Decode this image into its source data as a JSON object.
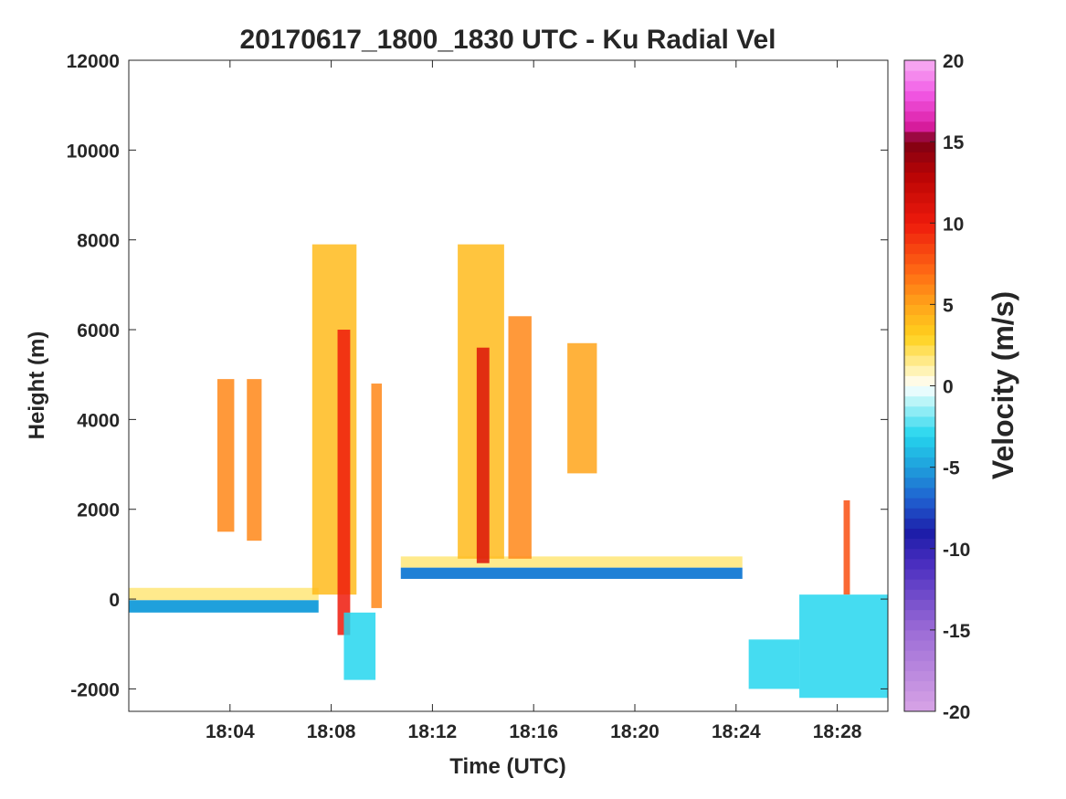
{
  "chart_data": {
    "type": "heatmap",
    "title": "20170617_1800_1830 UTC - Ku Radial Vel",
    "xlabel": "Time (UTC)",
    "ylabel": "Height (m)",
    "xlim": [
      "18:00:00",
      "18:30:00"
    ],
    "xticks": [
      "18:04",
      "18:08",
      "18:12",
      "18:16",
      "18:20",
      "18:24",
      "18:28"
    ],
    "ylim": [
      -2500,
      12000
    ],
    "yticks": [
      "-2000",
      "0",
      "2000",
      "4000",
      "6000",
      "8000",
      "10000",
      "12000"
    ],
    "grid": false,
    "colorbar": {
      "label": "Velocity (m/s)",
      "range": [
        -20,
        20
      ],
      "ticks": [
        "-20",
        "-15",
        "-10",
        "-5",
        "0",
        "5",
        "10",
        "15",
        "20"
      ],
      "colors": [
        {
          "v": -20,
          "c": "#d8a3e6"
        },
        {
          "v": -15,
          "c": "#9b6bd6"
        },
        {
          "v": -11,
          "c": "#4b2fc0"
        },
        {
          "v": -9,
          "c": "#1c1ca8"
        },
        {
          "v": -7,
          "c": "#1f5fd0"
        },
        {
          "v": -5,
          "c": "#1fa0dc"
        },
        {
          "v": -3,
          "c": "#25d6ee"
        },
        {
          "v": -1,
          "c": "#b6f4f8"
        },
        {
          "v": 0,
          "c": "#ffffff"
        },
        {
          "v": 1,
          "c": "#fff2b0"
        },
        {
          "v": 3,
          "c": "#ffd21e"
        },
        {
          "v": 5,
          "c": "#ffa41a"
        },
        {
          "v": 7,
          "c": "#ff6a14"
        },
        {
          "v": 10,
          "c": "#ee1a0c"
        },
        {
          "v": 13,
          "c": "#b80404"
        },
        {
          "v": 15,
          "c": "#7e0014"
        },
        {
          "v": 16,
          "c": "#dc1ea5"
        },
        {
          "v": 18,
          "c": "#f25ae6"
        },
        {
          "v": 20,
          "c": "#f7b0f3"
        }
      ]
    },
    "features": [
      {
        "name": "surface-echo-1",
        "t0": "18:00:00",
        "t1": "18:07:30",
        "bottom": -300,
        "top": 250,
        "low_v": -5,
        "high_v": 1.5
      },
      {
        "name": "surface-echo-2",
        "t0": "18:10:45",
        "t1": "18:24:15",
        "bottom": 450,
        "top": 950,
        "low_v": -6,
        "high_v": 1.5
      },
      {
        "name": "cell-a",
        "t0": "18:03:30",
        "t1": "18:04:10",
        "bottom": 1500,
        "top": 4900,
        "v": 6
      },
      {
        "name": "cell-b",
        "t0": "18:04:40",
        "t1": "18:05:15",
        "bottom": 1300,
        "top": 4900,
        "v": 6
      },
      {
        "name": "cell-c",
        "t0": "18:07:15",
        "t1": "18:09:00",
        "bottom": 100,
        "top": 7900,
        "v": 4
      },
      {
        "name": "cell-c-core",
        "t0": "18:08:15",
        "t1": "18:08:45",
        "bottom": -800,
        "top": 6000,
        "v": 10
      },
      {
        "name": "cell-d",
        "t0": "18:09:35",
        "t1": "18:10:00",
        "bottom": -200,
        "top": 4800,
        "v": 6
      },
      {
        "name": "cell-e",
        "t0": "18:13:00",
        "t1": "18:14:50",
        "bottom": 900,
        "top": 7900,
        "v": 4
      },
      {
        "name": "cell-e-core",
        "t0": "18:13:45",
        "t1": "18:14:15",
        "bottom": 800,
        "top": 5600,
        "v": 11
      },
      {
        "name": "cell-f",
        "t0": "18:15:00",
        "t1": "18:15:55",
        "bottom": 900,
        "top": 6300,
        "v": 6
      },
      {
        "name": "cell-g",
        "t0": "18:17:20",
        "t1": "18:18:30",
        "bottom": 2800,
        "top": 5700,
        "v": 5
      },
      {
        "name": "cell-h",
        "t0": "18:28:15",
        "t1": "18:28:30",
        "bottom": 100,
        "top": 2200,
        "v": 8
      },
      {
        "name": "ground-dip-1",
        "t0": "18:08:30",
        "t1": "18:09:45",
        "bottom": -1800,
        "top": -300,
        "v": -3
      },
      {
        "name": "ground-dip-2",
        "t0": "18:24:30",
        "t1": "18:26:30",
        "bottom": -2000,
        "top": -900,
        "v": -3
      },
      {
        "name": "ground-dip-3",
        "t0": "18:26:30",
        "t1": "18:30:00",
        "bottom": -2200,
        "top": 100,
        "v": -3
      }
    ]
  }
}
